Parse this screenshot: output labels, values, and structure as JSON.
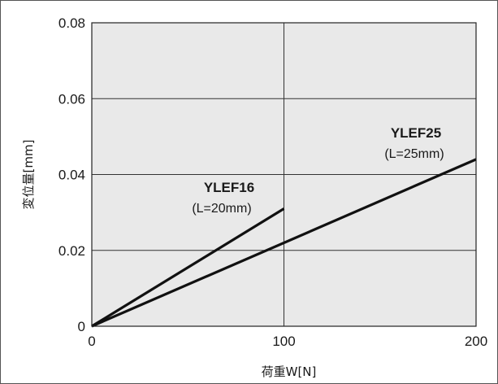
{
  "chart_data": {
    "type": "line",
    "title": "",
    "xlabel": "荷重W[N]",
    "ylabel": "変位量[mm]",
    "xlim": [
      0,
      200
    ],
    "ylim": [
      0,
      0.08
    ],
    "x_ticks": [
      "0",
      "100",
      "200"
    ],
    "y_ticks": [
      "0",
      "0.02",
      "0.04",
      "0.06",
      "0.08"
    ],
    "grid": true,
    "plot_background": "#e9e9e9",
    "line_color": "#111111",
    "series": [
      {
        "name": "YLEF16",
        "note": "(L=20mm)",
        "x": [
          0,
          100
        ],
        "y": [
          0,
          0.031
        ]
      },
      {
        "name": "YLEF25",
        "note": "(L=25mm)",
        "x": [
          0,
          200
        ],
        "y": [
          0,
          0.044
        ]
      }
    ]
  }
}
